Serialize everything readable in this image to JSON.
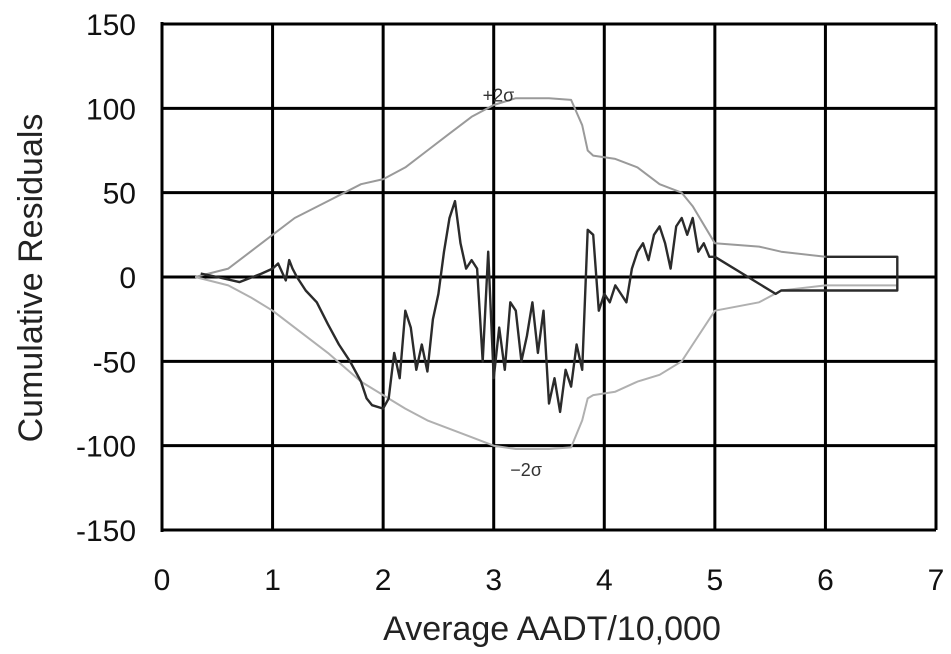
{
  "chart_data": {
    "type": "line",
    "xlabel": "Average AADT/10,000",
    "ylabel": "Cumulative Residuals",
    "xlim": [
      0,
      7
    ],
    "ylim": [
      -150,
      150
    ],
    "xticks": [
      0,
      1,
      2,
      3,
      4,
      5,
      6,
      7
    ],
    "yticks": [
      150,
      100,
      50,
      0,
      -50,
      -100,
      -150
    ],
    "grid": true,
    "colors": {
      "residuals": "#2b2b2b",
      "upper": "#9a9a9a",
      "lower": "#b0b0b0",
      "grid": "#000000"
    },
    "annotations": [
      {
        "text": "+2σ",
        "x": 2.9,
        "y": 104
      },
      {
        "text": "−2σ",
        "x": 3.15,
        "y": -118
      }
    ],
    "series": [
      {
        "role": "residuals",
        "x": [
          0.35,
          0.5,
          0.7,
          0.9,
          1.0,
          1.05,
          1.12,
          1.15,
          1.18,
          1.22,
          1.3,
          1.4,
          1.5,
          1.6,
          1.7,
          1.8,
          1.85,
          1.9,
          2.0,
          2.05,
          2.1,
          2.15,
          2.2,
          2.25,
          2.3,
          2.35,
          2.4,
          2.45,
          2.5,
          2.55,
          2.6,
          2.65,
          2.7,
          2.75,
          2.8,
          2.85,
          2.9,
          2.95,
          3.0,
          3.05,
          3.1,
          3.15,
          3.2,
          3.25,
          3.3,
          3.35,
          3.4,
          3.45,
          3.5,
          3.55,
          3.6,
          3.65,
          3.7,
          3.75,
          3.8,
          3.85,
          3.9,
          3.95,
          4.0,
          4.05,
          4.1,
          4.15,
          4.2,
          4.25,
          4.3,
          4.35,
          4.4,
          4.45,
          4.5,
          4.55,
          4.6,
          4.65,
          4.7,
          4.75,
          4.8,
          4.85,
          4.9,
          4.95,
          5.0,
          5.55,
          5.6,
          6.65,
          6.65,
          6.0
        ],
        "y": [
          2,
          0,
          -3,
          2,
          5,
          8,
          -2,
          10,
          5,
          0,
          -8,
          -15,
          -28,
          -40,
          -50,
          -62,
          -72,
          -76,
          -78,
          -72,
          -45,
          -60,
          -20,
          -30,
          -55,
          -40,
          -56,
          -25,
          -10,
          15,
          35,
          45,
          20,
          5,
          10,
          5,
          -50,
          15,
          -60,
          -30,
          -55,
          -15,
          -20,
          -50,
          -35,
          -15,
          -45,
          -20,
          -75,
          -60,
          -80,
          -55,
          -65,
          -40,
          -55,
          28,
          25,
          -20,
          -10,
          -15,
          -5,
          -10,
          -15,
          5,
          15,
          20,
          10,
          25,
          30,
          20,
          5,
          30,
          35,
          25,
          35,
          15,
          20,
          12,
          12,
          -10,
          -8,
          -8,
          12,
          12
        ]
      },
      {
        "role": "upper",
        "name": "+2σ",
        "x": [
          0.3,
          0.6,
          0.8,
          1.0,
          1.2,
          1.5,
          1.8,
          2.0,
          2.2,
          2.4,
          2.6,
          2.8,
          3.0,
          3.2,
          3.5,
          3.7,
          3.8,
          3.85,
          3.9,
          4.1,
          4.3,
          4.5,
          4.7,
          4.8,
          5.0,
          5.4,
          5.6,
          6.0,
          6.65
        ],
        "y": [
          0,
          5,
          15,
          25,
          35,
          45,
          55,
          58,
          65,
          75,
          85,
          95,
          102,
          106,
          106,
          105,
          90,
          75,
          72,
          70,
          65,
          55,
          50,
          42,
          20,
          18,
          15,
          12,
          12
        ]
      },
      {
        "role": "lower",
        "name": "−2σ",
        "x": [
          0.3,
          0.6,
          0.8,
          1.0,
          1.2,
          1.5,
          1.8,
          2.0,
          2.2,
          2.4,
          2.6,
          2.8,
          3.0,
          3.2,
          3.5,
          3.7,
          3.8,
          3.85,
          3.9,
          4.1,
          4.3,
          4.5,
          4.7,
          4.8,
          5.0,
          5.4,
          5.6,
          6.0,
          6.65
        ],
        "y": [
          0,
          -5,
          -12,
          -20,
          -30,
          -45,
          -62,
          -70,
          -78,
          -85,
          -90,
          -95,
          -100,
          -102,
          -102,
          -101,
          -85,
          -72,
          -70,
          -68,
          -62,
          -58,
          -50,
          -40,
          -20,
          -15,
          -8,
          -5,
          -5
        ]
      }
    ]
  }
}
